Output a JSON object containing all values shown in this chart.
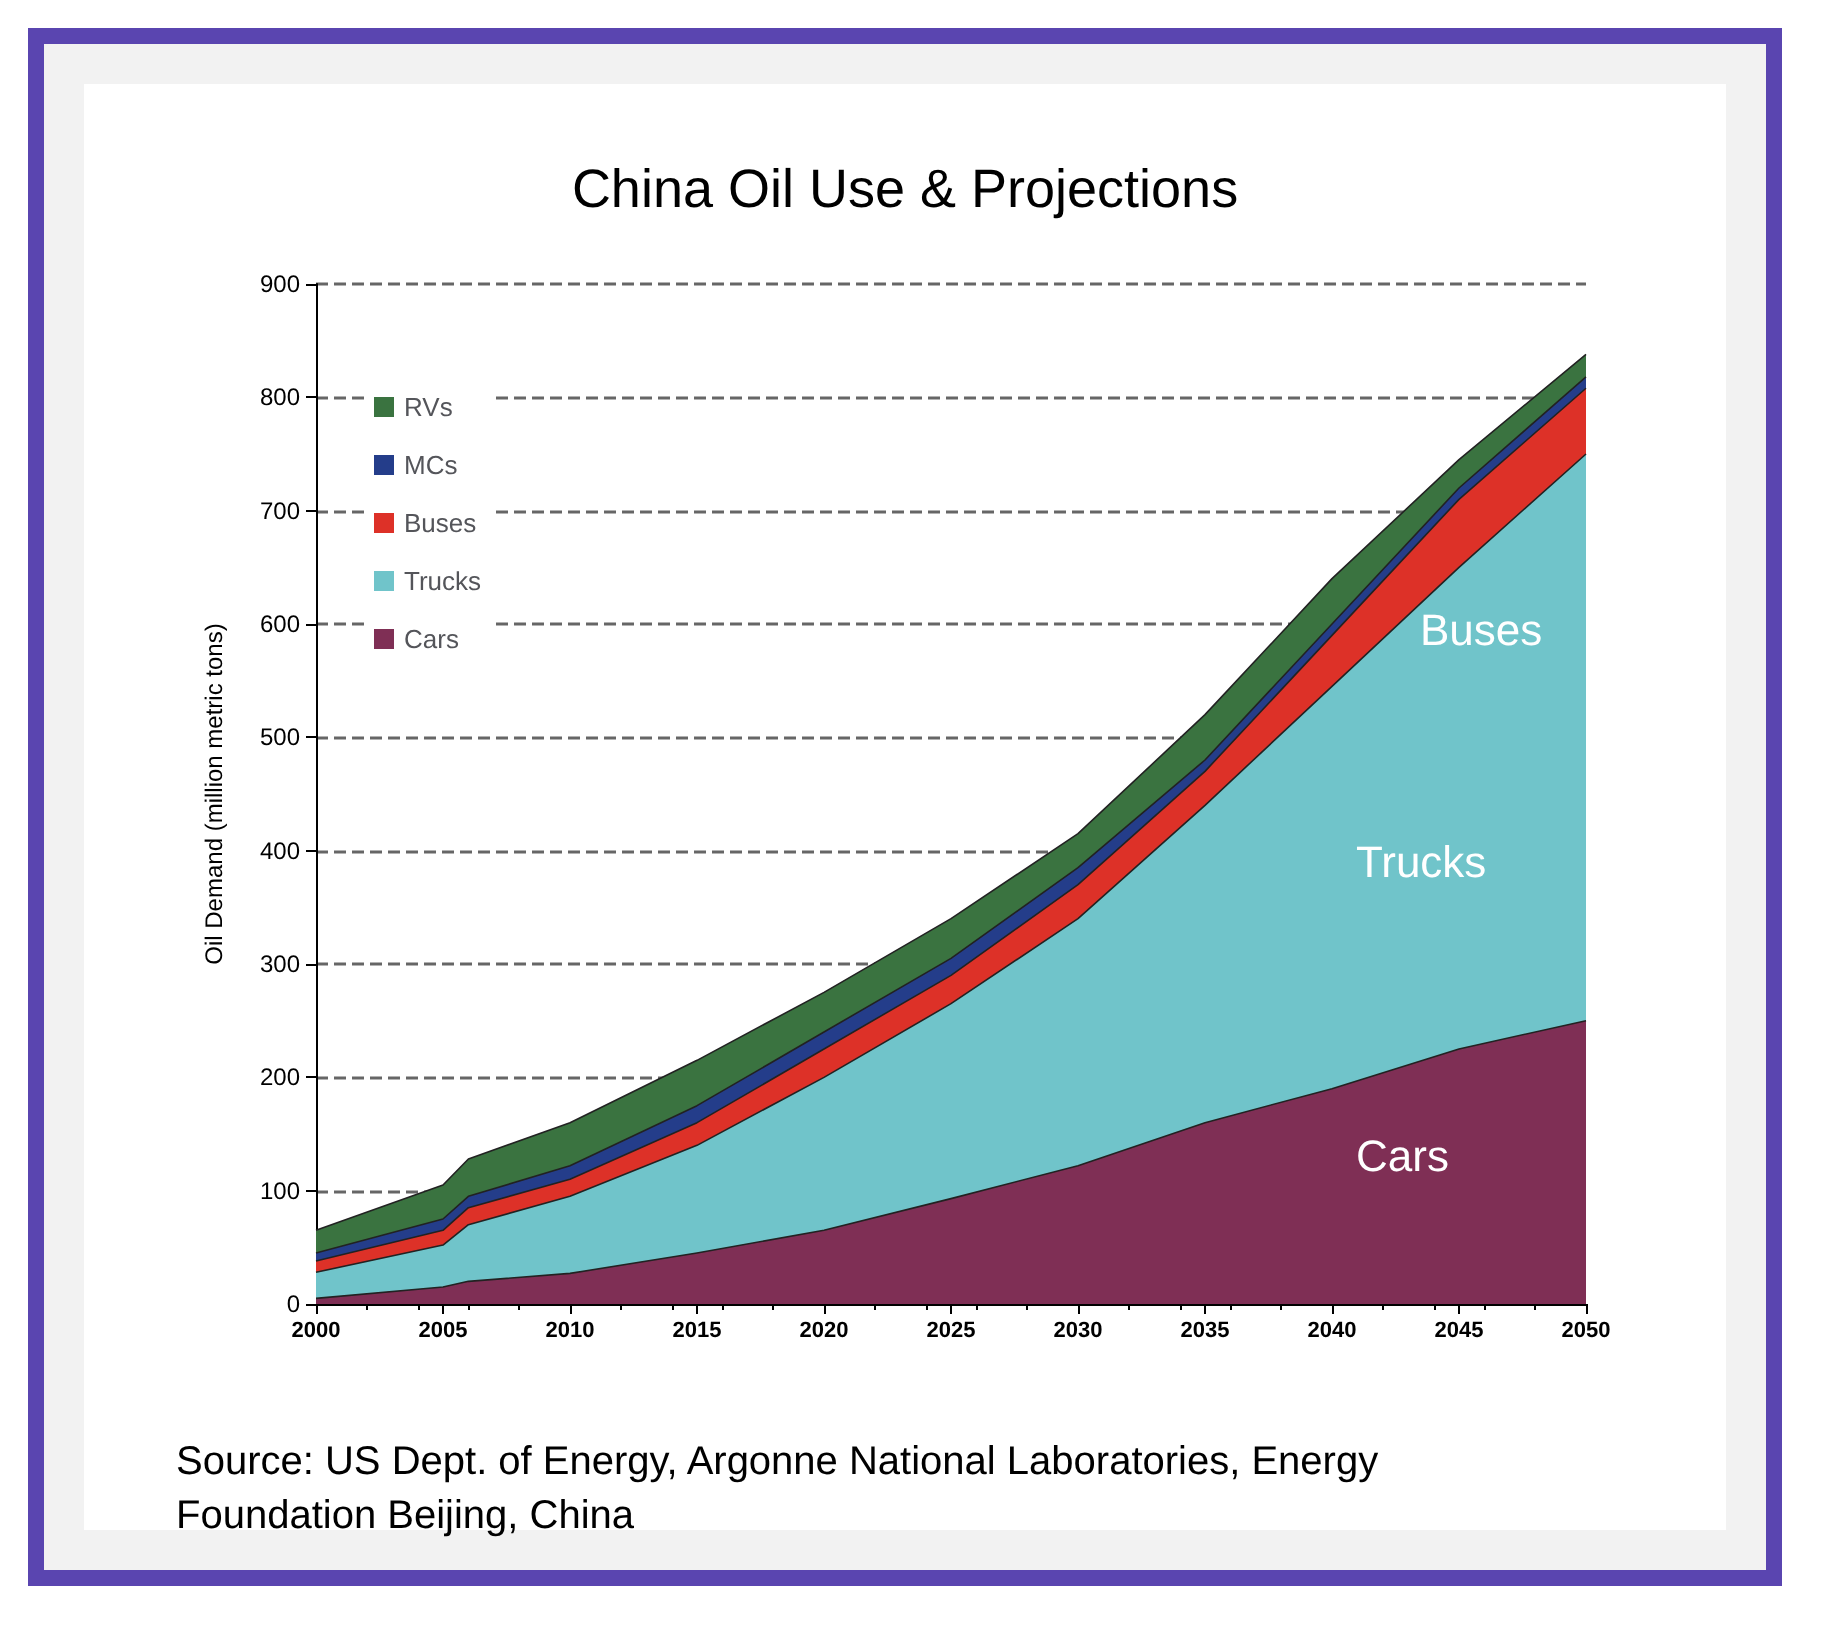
{
  "chart_data": {
    "type": "area",
    "title": "China Oil Use & Projections",
    "ylabel": "Oil Demand (million metric tons)",
    "stacked": true,
    "x": [
      2000,
      2005,
      2006,
      2010,
      2015,
      2020,
      2025,
      2030,
      2035,
      2040,
      2045,
      2050
    ],
    "series": [
      {
        "name": "Cars",
        "color": "#7f2f55",
        "values": [
          5,
          15,
          20,
          27,
          45,
          65,
          93,
          122,
          160,
          190,
          225,
          250
        ]
      },
      {
        "name": "Trucks",
        "color": "#70c4ca",
        "values": [
          23,
          37,
          50,
          68,
          95,
          135,
          172,
          218,
          280,
          355,
          425,
          500
        ]
      },
      {
        "name": "Buses",
        "color": "#dd3128",
        "values": [
          10,
          13,
          15,
          15,
          20,
          25,
          25,
          30,
          30,
          45,
          60,
          58
        ]
      },
      {
        "name": "MCs",
        "color": "#243d8a",
        "values": [
          7,
          10,
          10,
          12,
          15,
          15,
          15,
          15,
          10,
          10,
          10,
          10
        ]
      },
      {
        "name": "RVs",
        "color": "#3a7340",
        "values": [
          20,
          30,
          33,
          38,
          40,
          35,
          35,
          30,
          40,
          40,
          25,
          20
        ]
      }
    ],
    "xlim": [
      2000,
      2050
    ],
    "xticks": [
      2000,
      2005,
      2010,
      2015,
      2020,
      2025,
      2030,
      2035,
      2040,
      2045,
      2050
    ],
    "ylim": [
      0,
      900
    ],
    "yticks": [
      0,
      100,
      200,
      300,
      400,
      500,
      600,
      700,
      800,
      900
    ],
    "grid": "y",
    "legend": "top left",
    "marker": "none",
    "annotations": [
      "Buses",
      "Trucks",
      "Cars",
      "Source: US Dept. of Energy, Argonne National Laboratories, Energy Foundation Beijing, China"
    ]
  }
}
